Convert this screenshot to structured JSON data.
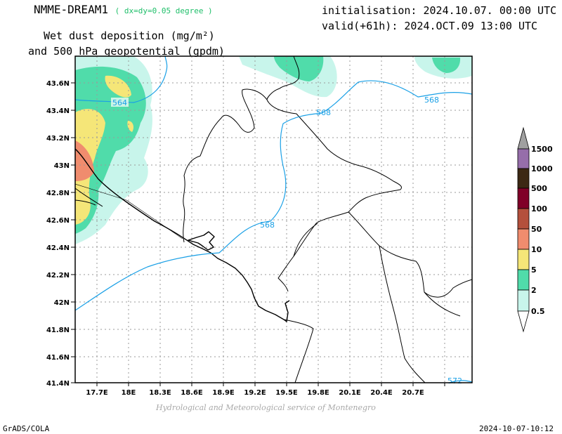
{
  "header": {
    "model": "NMME-DREAM1",
    "resolution": "( dx=dy=0.05 degree )",
    "init": "initialisation: 2024.10.07. 00:00 UTC",
    "valid": "valid(+61h): 2024.OCT.09 13:00 UTC",
    "var_line1": "Wet dust deposition (mg/m²)",
    "var_line2": "and 500 hPa geopotential (gpdm)"
  },
  "map": {
    "lat_labels": [
      "43.6N",
      "43.4N",
      "43.2N",
      "43N",
      "42.8N",
      "42.6N",
      "42.4N",
      "42.2N",
      "42N",
      "41.8N",
      "41.6N",
      "41.4N"
    ],
    "lon_labels": [
      "17.7E",
      "18E",
      "18.3E",
      "18.6E",
      "18.9E",
      "19.2E",
      "19.5E",
      "19.8E",
      "20.1E",
      "20.4E",
      "20.7E"
    ],
    "lat_range": [
      41.4,
      43.7
    ],
    "lon_range": [
      17.45,
      21.05
    ],
    "contour_color": "#1aa0e6",
    "contour_labels": [
      "564",
      "568",
      "568",
      "568",
      "572"
    ]
  },
  "legend": {
    "levels": [
      "1500",
      "1000",
      "500",
      "100",
      "50",
      "10",
      "5",
      "2",
      "0.5"
    ],
    "colors": [
      "#a0a0a0",
      "#966eaa",
      "#3c2814",
      "#800028",
      "#b4503c",
      "#f08c6e",
      "#f5e678",
      "#50dcaa",
      "#c8f5eb"
    ]
  },
  "footer": {
    "credit": "Hydrological and Meteorological service of Montenegro",
    "software": "GrADS/COLA",
    "timestamp": "2024-10-07-10:12"
  }
}
